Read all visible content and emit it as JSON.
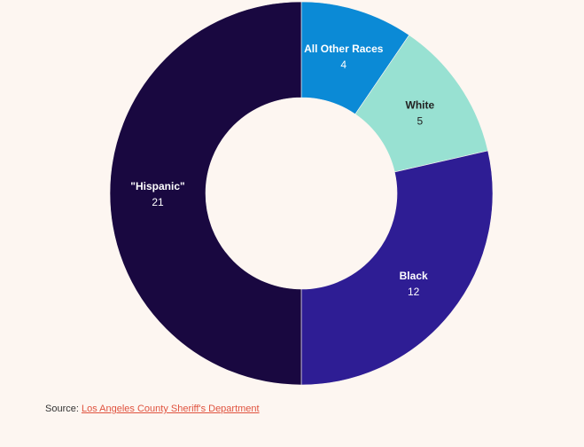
{
  "chart_data": {
    "type": "pie",
    "variant": "donut",
    "categories": [
      "All Other Races",
      "White",
      "Black",
      "\"Hispanic\""
    ],
    "values": [
      4,
      5,
      12,
      21
    ],
    "colors": [
      "#0b8ad6",
      "#98e1d2",
      "#2e1d94",
      "#190840"
    ],
    "label_colors": [
      "#ffffff",
      "#222222",
      "#ffffff",
      "#ffffff"
    ],
    "legend": "none (labels on slices)"
  },
  "source": {
    "prefix": "Source: ",
    "link_text": "Los Angeles County Sheriff's Department"
  }
}
